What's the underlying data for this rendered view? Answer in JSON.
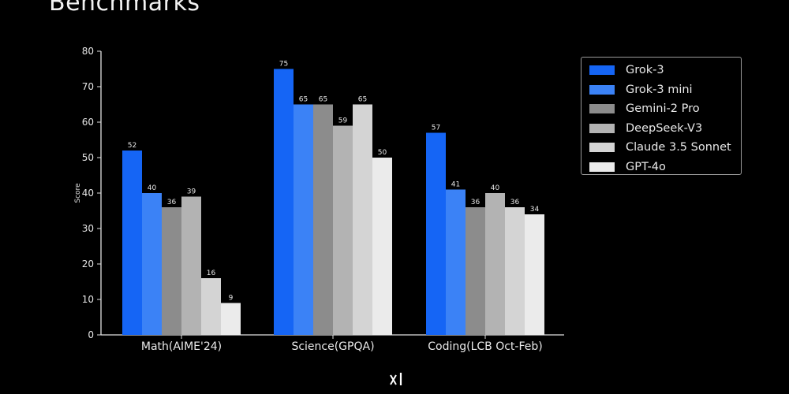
{
  "page": {
    "title": "Benchmarks",
    "logo_text": "xAI"
  },
  "chart_data": {
    "type": "bar",
    "title": "Benchmarks",
    "xlabel": "",
    "ylabel": "Score",
    "ylim": [
      0,
      80
    ],
    "yticks": [
      0,
      10,
      20,
      30,
      40,
      50,
      60,
      70,
      80
    ],
    "categories": [
      "Math(AIME'24)",
      "Science(GPQA)",
      "Coding(LCB Oct-Feb)"
    ],
    "series": [
      {
        "name": "Grok-3",
        "color": "#1565f5",
        "values": [
          52,
          75,
          57
        ]
      },
      {
        "name": "Grok-3 mini",
        "color": "#3b82f6",
        "values": [
          40,
          65,
          41
        ]
      },
      {
        "name": "Gemini-2 Pro",
        "color": "#8c8c8c",
        "values": [
          36,
          65,
          36
        ]
      },
      {
        "name": "DeepSeek-V3",
        "color": "#b3b3b3",
        "values": [
          39,
          59,
          40
        ]
      },
      {
        "name": "Claude 3.5 Sonnet",
        "color": "#d4d4d4",
        "values": [
          16,
          65,
          36
        ]
      },
      {
        "name": "GPT-4o",
        "color": "#ebebeb",
        "values": [
          9,
          50,
          34
        ]
      }
    ],
    "data_labels": true,
    "legend_position": "top-right",
    "grid": false
  }
}
